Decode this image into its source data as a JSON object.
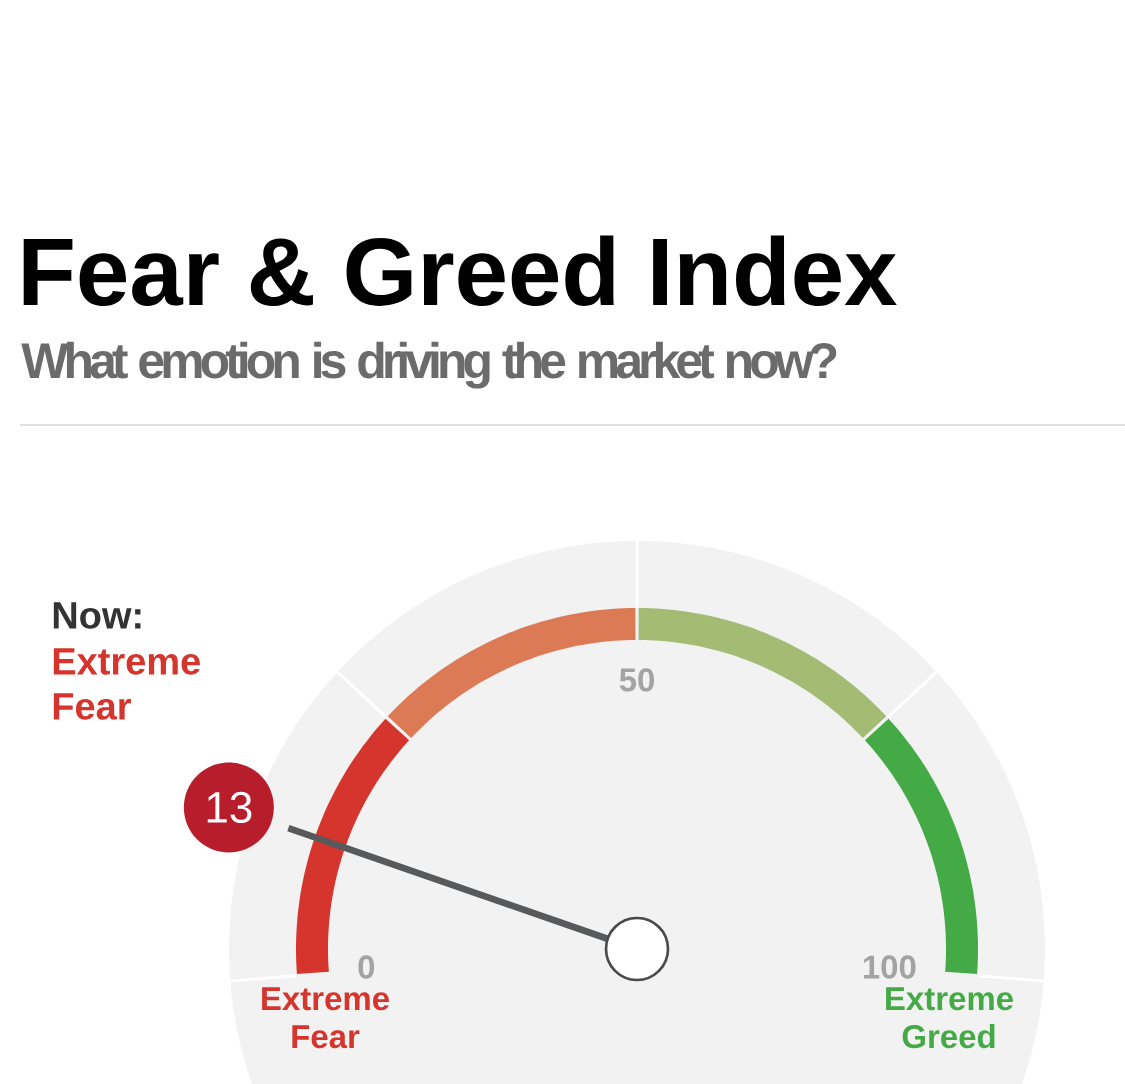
{
  "chart_data": {
    "type": "donut",
    "title": "Fear & Greed Index",
    "subtitle": "What emotion is driving the market now?",
    "categories": [
      "Extreme Fear",
      null,
      null,
      "Extreme Greed"
    ],
    "values": [
      25,
      25,
      25,
      25
    ],
    "colors": [
      "#d5352d",
      "#dc7a55",
      "#a3bb72",
      "#43aa46"
    ],
    "needle": "Extreme Fear",
    "annotations": [
      "Now:",
      "13",
      "0",
      "50",
      "100"
    ]
  }
}
